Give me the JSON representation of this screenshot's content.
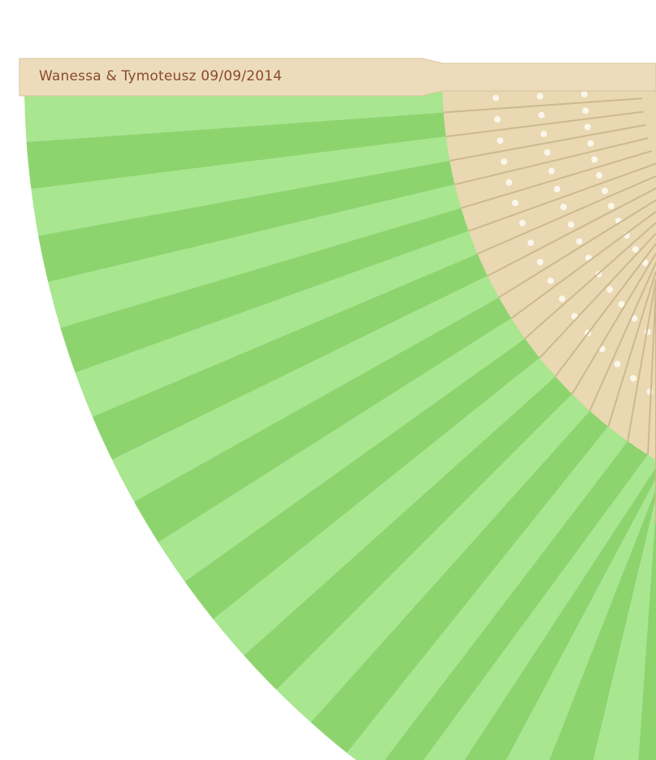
{
  "product": {
    "engraving_text": "Wanessa & Tymoteusz 09/09/2014",
    "object": "folding hand fan",
    "colors": {
      "pleat_light": "#a8e690",
      "pleat_dark": "#8dd46f",
      "bamboo": "#e9d8b2",
      "engraving": "#8a4a2a"
    }
  }
}
